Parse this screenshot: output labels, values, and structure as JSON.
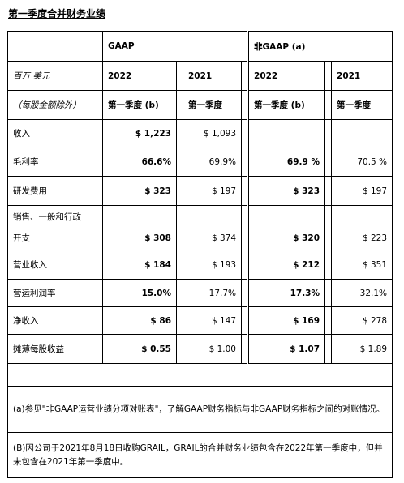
{
  "title": "第一季度合并财务业绩",
  "headers": {
    "gaap": "GAAP",
    "non_gaap": "非GAAP (a)",
    "unit_line1": "百万 美元",
    "unit_line2": "（每股金额除外）",
    "years": [
      "2022",
      "2021",
      "2022",
      "2021"
    ],
    "periods": [
      "第一季度 (b)",
      "第一季度",
      "第一季度 (b)",
      "第一季度"
    ]
  },
  "rows": [
    {
      "label": "收入",
      "values": [
        "$ 1,223",
        "$ 1,093",
        "",
        ""
      ]
    },
    {
      "label": "毛利率",
      "values": [
        "66.6%",
        "69.9%",
        "69.9 %",
        "70.5 %"
      ]
    },
    {
      "label": "研发费用",
      "values": [
        "$ 323",
        "$ 197",
        "$ 323",
        "$ 197"
      ]
    },
    {
      "label_line1": "销售、一般和行政",
      "label_line2": "开支",
      "values": [
        "$ 308",
        "$ 374",
        "$ 320",
        "$ 223"
      ]
    },
    {
      "label": "营业收入",
      "values": [
        "$ 184",
        "$ 193",
        "$ 212",
        "$ 351"
      ]
    },
    {
      "label": "营运利润率",
      "values": [
        "15.0%",
        "17.7%",
        "17.3%",
        "32.1%"
      ]
    },
    {
      "label": "净收入",
      "values": [
        "$ 86",
        "$ 147",
        "$ 169",
        "$ 278"
      ]
    },
    {
      "label": "摊薄每股收益",
      "values": [
        "$ 0.55",
        "$ 1.00",
        "$ 1.07",
        "$ 1.89"
      ]
    }
  ],
  "notes": {
    "a": "(a)参见\"非GAAP运营业绩分项对账表\"，了解GAAP财务指标与非GAAP财务指标之间的对账情况。",
    "b": "(B)因公司于2021年8月18日收购GRAIL，GRAIL的合并财务业绩包含在2022年第一季度中，但并未包含在2021年第一季度中。"
  }
}
